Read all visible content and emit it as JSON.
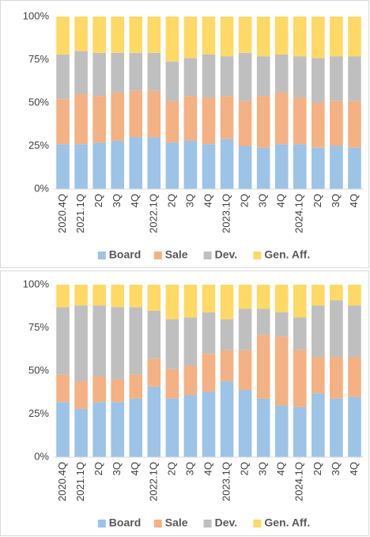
{
  "chart_data": [
    {
      "type": "bar",
      "stacked": true,
      "categories": [
        "2020.4Q",
        "2021.1Q",
        "2Q",
        "3Q",
        "4Q",
        "2022.1Q",
        "2Q",
        "3Q",
        "4Q",
        "2023.1Q",
        "2Q",
        "3Q",
        "4Q",
        "2024.1Q",
        "2Q",
        "3Q",
        "4Q"
      ],
      "series": [
        {
          "name": "Board",
          "color": "#9dc3e6",
          "values": [
            26,
            26,
            27,
            28,
            30,
            30,
            27,
            28,
            26,
            29,
            25,
            24,
            26,
            26,
            24,
            25,
            24
          ]
        },
        {
          "name": "Sale",
          "color": "#f4b183",
          "values": [
            26,
            29,
            27,
            28,
            27,
            27,
            24,
            26,
            27,
            25,
            26,
            30,
            30,
            27,
            26,
            26,
            27
          ]
        },
        {
          "name": "Dev.",
          "color": "#bfbfbf",
          "values": [
            26,
            25,
            25,
            23,
            22,
            22,
            23,
            22,
            25,
            23,
            28,
            23,
            22,
            24,
            26,
            26,
            26
          ]
        },
        {
          "name": "Gen. Aff.",
          "color": "#ffd966",
          "values": [
            22,
            20,
            21,
            21,
            21,
            21,
            26,
            24,
            22,
            23,
            21,
            23,
            22,
            23,
            24,
            23,
            23
          ]
        }
      ],
      "ylim": [
        0,
        100
      ],
      "yticks": [
        {
          "value": 0,
          "label": "0%"
        },
        {
          "value": 25,
          "label": "25%"
        },
        {
          "value": 50,
          "label": "50%"
        },
        {
          "value": 75,
          "label": "75%"
        },
        {
          "value": 100,
          "label": "100%"
        }
      ],
      "grid": false,
      "legend": "bottom"
    },
    {
      "type": "bar",
      "stacked": true,
      "categories": [
        "2020.4Q",
        "2021.1Q",
        "2Q",
        "3Q",
        "4Q",
        "2022.1Q",
        "2Q",
        "3Q",
        "4Q",
        "2023.1Q",
        "2Q",
        "3Q",
        "4Q",
        "2024.1Q",
        "2Q",
        "3Q",
        "4Q"
      ],
      "series": [
        {
          "name": "Board",
          "color": "#9dc3e6",
          "values": [
            32,
            28,
            32,
            32,
            34,
            41,
            34,
            36,
            38,
            44,
            39,
            34,
            30,
            29,
            37,
            34,
            35
          ]
        },
        {
          "name": "Sale",
          "color": "#f4b183",
          "values": [
            16,
            16,
            15,
            13,
            14,
            16,
            17,
            17,
            22,
            18,
            23,
            37,
            40,
            33,
            21,
            24,
            23
          ]
        },
        {
          "name": "Dev.",
          "color": "#bfbfbf",
          "values": [
            39,
            44,
            41,
            42,
            39,
            28,
            29,
            28,
            24,
            18,
            24,
            15,
            14,
            19,
            30,
            33,
            30
          ]
        },
        {
          "name": "Gen. Aff.",
          "color": "#ffd966",
          "values": [
            13,
            12,
            12,
            13,
            13,
            15,
            20,
            19,
            16,
            20,
            14,
            14,
            16,
            19,
            12,
            9,
            12
          ]
        }
      ],
      "ylim": [
        0,
        100
      ],
      "yticks": [
        {
          "value": 0,
          "label": "0%"
        },
        {
          "value": 25,
          "label": "25%"
        },
        {
          "value": 50,
          "label": "50%"
        },
        {
          "value": 75,
          "label": "75%"
        },
        {
          "value": 100,
          "label": "100%"
        }
      ],
      "grid": false,
      "legend": "bottom"
    }
  ]
}
